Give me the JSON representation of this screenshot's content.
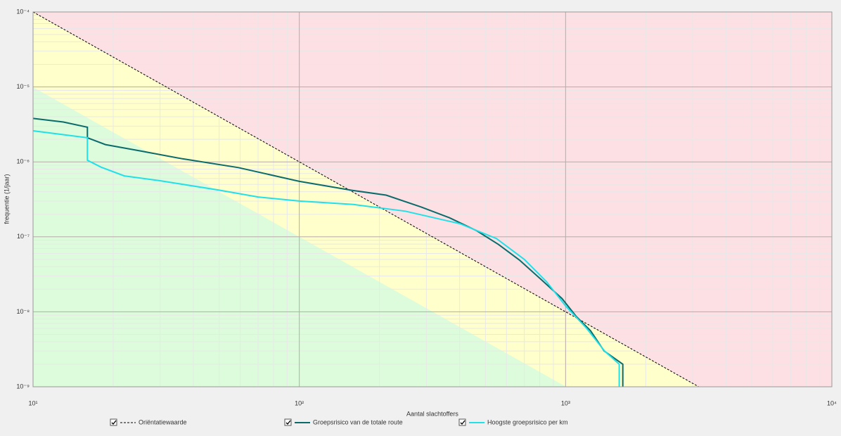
{
  "chart_data": {
    "type": "line",
    "log_x": true,
    "log_y": true,
    "grid": true,
    "minor_grid": true,
    "xlabel": "Aantal slachtoffers",
    "ylabel": "frequentie (1/jaar)",
    "xlim": [
      10,
      10000
    ],
    "ylim": [
      1e-09,
      0.0001
    ],
    "xticks": [
      {
        "value": 10,
        "label": "10¹"
      },
      {
        "value": 100,
        "label": "10²"
      },
      {
        "value": 1000,
        "label": "10³"
      },
      {
        "value": 10000,
        "label": "10⁴"
      }
    ],
    "yticks": [
      {
        "value": 1e-09,
        "label": "10⁻⁹"
      },
      {
        "value": 1e-08,
        "label": "10⁻⁸"
      },
      {
        "value": 1e-07,
        "label": "10⁻⁷"
      },
      {
        "value": 1e-06,
        "label": "10⁻⁶"
      },
      {
        "value": 1e-05,
        "label": "10⁻⁵"
      },
      {
        "value": 0.0001,
        "label": "10⁻⁴"
      }
    ],
    "series": [
      {
        "name": "Oriëntatiewaarde",
        "color": "#000000",
        "dashed": true,
        "x": [
          10,
          100,
          1000,
          3162
        ],
        "values": [
          0.0001,
          1e-06,
          1e-08,
          1e-09
        ]
      },
      {
        "name": "Groepsrisico van de totale route",
        "color": "#0b6b6b",
        "dashed": false,
        "x": [
          10,
          13,
          16,
          16,
          18.7,
          25.3,
          36.4,
          59,
          100,
          156,
          212,
          287,
          366,
          465,
          560,
          671,
          809,
          970,
          1095,
          1240,
          1395,
          1640,
          1640
        ],
        "values": [
          3.8e-06,
          3.4e-06,
          2.9e-06,
          2.1e-06,
          1.7e-06,
          1.4e-06,
          1.1e-06,
          8.4e-07,
          5.5e-07,
          4.2e-07,
          3.6e-07,
          2.5e-07,
          1.8e-07,
          1.2e-07,
          7.9e-08,
          4.9e-08,
          2.7e-08,
          1.5e-08,
          8.7e-09,
          5.6e-09,
          3e-09,
          2e-09,
          1e-09
        ]
      },
      {
        "name": "Hoogste groepsrisico per km",
        "color": "#22e0e8",
        "dashed": false,
        "x": [
          10,
          16,
          16,
          18,
          22,
          30,
          50,
          70,
          100,
          160,
          250,
          400,
          550,
          700,
          850,
          1000,
          1200,
          1400,
          1590,
          1590
        ],
        "values": [
          2.6e-06,
          2.1e-06,
          1.05e-06,
          8.5e-07,
          6.5e-07,
          5.6e-07,
          4.2e-07,
          3.4e-07,
          3e-07,
          2.7e-07,
          2.2e-07,
          1.5e-07,
          9.5e-08,
          5e-08,
          2.5e-08,
          1.2e-08,
          6e-09,
          3e-09,
          2e-09,
          1e-09
        ]
      }
    ]
  }
}
